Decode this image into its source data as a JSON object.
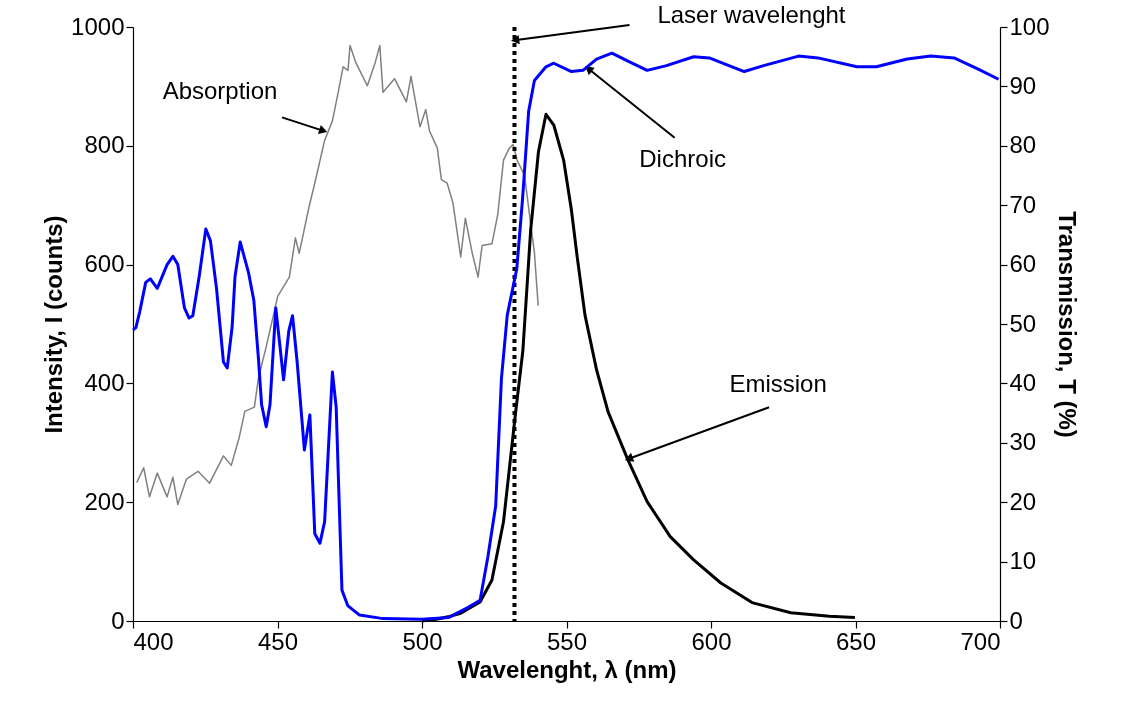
{
  "chart_data": {
    "type": "line",
    "xlabel": "Wavelenght, λ (nm)",
    "ylabel": "Intensity, I (counts)",
    "y2label": "Transmission, T (%)",
    "xlim": [
      400,
      700
    ],
    "xticks": [
      400,
      450,
      500,
      550,
      600,
      650,
      700
    ],
    "ylim": [
      0,
      1000
    ],
    "yticks": [
      0,
      200,
      400,
      600,
      800,
      1000
    ],
    "y2lim": [
      0,
      100
    ],
    "y2ticks": [
      0,
      10,
      20,
      30,
      40,
      50,
      60,
      70,
      80,
      90,
      100
    ],
    "grid": false,
    "series": [
      {
        "color": "#808080",
        "x": [
          401.3,
          403.7,
          405.7,
          408.4,
          411.8,
          413.8,
          415.5,
          418.5,
          422.5,
          426.5,
          431.3,
          434,
          436.7,
          438.7,
          442,
          443.4,
          446.1,
          450.1,
          454.1,
          456.2,
          457.5,
          460.9,
          462.9,
          466.3,
          469,
          471,
          472.7,
          474.4,
          475.1,
          477.1,
          481.1,
          483.8,
          485.4,
          486.5,
          490.5,
          494.6,
          496.2,
          499.3,
          501.3,
          502.6,
          505.3,
          506.7,
          508.7,
          510.7,
          513.4,
          515,
          517.4,
          519.4,
          520.8,
          524.2,
          526.2,
          528.2,
          530.2,
          531.5,
          532.9,
          535.5,
          537.5,
          538.9,
          540.2
        ],
        "values": [
          233,
          258,
          209,
          249,
          209,
          242,
          196,
          239,
          252,
          232,
          278,
          262,
          308,
          353,
          360,
          409,
          462,
          547,
          579,
          645,
          619,
          697,
          737,
          809,
          842,
          890,
          933,
          927,
          969,
          940,
          901,
          940,
          969,
          890,
          913,
          874,
          917,
          832,
          861,
          825,
          796,
          743,
          737,
          704,
          613,
          678,
          619,
          579,
          632,
          635,
          684,
          776,
          796,
          802,
          776,
          750,
          672,
          620,
          531
        ]
      },
      {
        "color": "#0000ff",
        "axis": "y2",
        "x": [
          400,
          401,
          402.3,
          404.4,
          406,
          408.4,
          411.8,
          413.8,
          415.5,
          417.8,
          419.4,
          420.7,
          422.9,
          425.2,
          426.8,
          428.9,
          431.3,
          432.6,
          434.3,
          435.3,
          437.1,
          440,
          441.8,
          443.4,
          444.5,
          446.1,
          447.4,
          449.4,
          450.8,
          452.1,
          453.9,
          455.2,
          456.8,
          459.3,
          461.2,
          462.9,
          464.7,
          466.3,
          469,
          470.3,
          472.3,
          474.3,
          478.4,
          486.5,
          499.9,
          509.3,
          516,
          520.1,
          522.8,
          525.5,
          527.5,
          529.5,
          532.8,
          534.8,
          536.9,
          538.9,
          542.9,
          545.6,
          551.7,
          555.7,
          560.4,
          565.7,
          571.1,
          577.9,
          584.6,
          594,
          599.4,
          611.5,
          618.2,
          630.3,
          637,
          650.5,
          657.2,
          667.9,
          676,
          684.1,
          692.1,
          699.5
        ],
        "values": [
          49,
          49.4,
          52,
          57,
          57.6,
          56,
          60,
          61.4,
          60,
          52.7,
          51,
          51.4,
          58,
          66,
          64,
          56,
          43.6,
          42.6,
          49.5,
          58,
          63.8,
          58.6,
          54,
          44.2,
          36.4,
          32.7,
          36.4,
          52.7,
          46.5,
          40.6,
          48.8,
          51.4,
          43.6,
          28.8,
          34.7,
          14.7,
          13.1,
          16.7,
          41.9,
          36,
          5.2,
          2.6,
          1,
          0.4,
          0.3,
          0.6,
          2.3,
          3.5,
          10.8,
          19.4,
          40.9,
          51.5,
          59.3,
          71.1,
          85.8,
          91,
          93.3,
          93.9,
          92.5,
          92.7,
          94.6,
          95.6,
          94.3,
          92.7,
          93.5,
          95,
          94.8,
          92.5,
          93.5,
          95.1,
          94.8,
          93.3,
          93.3,
          94.6,
          95.1,
          94.8,
          93,
          91.2
        ]
      },
      {
        "color": "#000000",
        "x": [
          500,
          505,
          509,
          513.4,
          520.1,
          524.2,
          528.2,
          532.2,
          534.9,
          537.6,
          540.3,
          542.9,
          545.6,
          549,
          551.7,
          553.7,
          556.4,
          560.4,
          564.4,
          571.1,
          577.9,
          585.9,
          594,
          603.4,
          614.2,
          627.6,
          641,
          649.8
        ],
        "values": [
          0,
          3,
          7,
          13,
          32,
          69,
          167,
          343,
          455,
          658,
          790,
          853,
          835,
          776,
          692,
          613,
          515,
          423,
          352,
          273,
          201,
          142,
          103,
          64,
          31,
          14,
          8,
          6
        ]
      }
    ],
    "ref_lines": [
      {
        "axis": "x",
        "value": 532,
        "label": "Laser wavelenght",
        "color": "#000000",
        "line_style": "dotted"
      }
    ],
    "annotations": [
      {
        "text": "Absorption",
        "x": 465.4,
        "y": 826
      },
      {
        "text": "Dichroic",
        "x": 558,
        "y": 928
      },
      {
        "text": "Emission",
        "x": 572,
        "y": 274
      }
    ]
  }
}
